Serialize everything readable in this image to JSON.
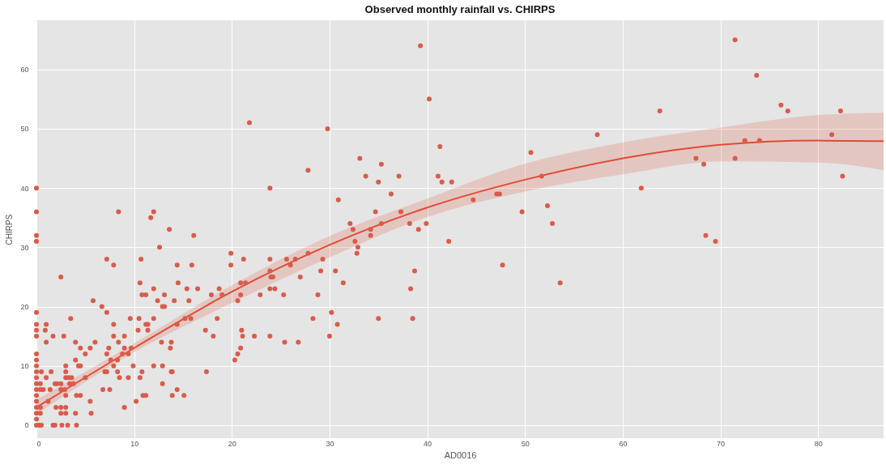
{
  "chart_data": {
    "type": "scatter",
    "title": "Observed monthly rainfall vs. CHIRPS",
    "xlabel": "AD0016",
    "ylabel": "CHIRPS",
    "xlim": [
      0,
      86.7
    ],
    "ylim": [
      -2.2,
      68.3
    ],
    "xticks": [
      0,
      10,
      20,
      30,
      40,
      50,
      60,
      70,
      80
    ],
    "yticks": [
      0,
      10,
      20,
      30,
      40,
      50,
      60
    ],
    "grid": true,
    "series": [
      {
        "type": "scatter",
        "marker": "circle",
        "color": "#d95b4b",
        "x": [
          71.5,
          73.7,
          76.2,
          76.9,
          82.3,
          63.8,
          57.4,
          50.6,
          51.7,
          81.4,
          72.5,
          74.0,
          67.5,
          68.3,
          71.5,
          82.5,
          61.9,
          49.7,
          52.3,
          52.8,
          68.5,
          69.5,
          53.6,
          39.3,
          40.2,
          29.8,
          41.3,
          33.1,
          35.3,
          27.8,
          33.7,
          37.1,
          41.1,
          35.0,
          41.5,
          42.5,
          36.3,
          30.9,
          47.1,
          47.4,
          44.7,
          34.7,
          37.3,
          32.1,
          35.3,
          38.2,
          39.9,
          32.4,
          34.2,
          39.1,
          34.2,
          32.6,
          32.9,
          42.2,
          32.8,
          27.8,
          26.5,
          26.0,
          29.3,
          27.0,
          29.1,
          30.6,
          38.7,
          47.7,
          31.4,
          28.8,
          38.3,
          30.2,
          28.3,
          35.0,
          38.5,
          30.8,
          30.0,
          21.8,
          23.9,
          12.0,
          11.7,
          13.6,
          16.1,
          12.6,
          19.9,
          19.9,
          14.4,
          15.9,
          21.2,
          23.9,
          25.6,
          23.9,
          24.0,
          24.2,
          14.5,
          20.9,
          21.4,
          11.2,
          12.0,
          15.4,
          16.5,
          18.7,
          13.1,
          17.9,
          19.0,
          20.9,
          22.9,
          23.9,
          24.4,
          25.3,
          12.4,
          14.1,
          15.6,
          20.6,
          12.9,
          13.1,
          12.0,
          15.2,
          15.8,
          14.4,
          18.5,
          11.2,
          11.4,
          11.4,
          17.3,
          21.0,
          21.1,
          18.1,
          22.3,
          23.9,
          12.8,
          13.8,
          13.7,
          25.4,
          26.8,
          20.9,
          20.6,
          20.3,
          12.0,
          12.9,
          13.8,
          13.9,
          17.4,
          12.9,
          14.4,
          13.9,
          15.1,
          11.2,
          0,
          0,
          0,
          0,
          8.4,
          7.2,
          7.9,
          2.5,
          10.6,
          10.7,
          10.8,
          5.8,
          6.7,
          7.2,
          0,
          3.5,
          9.6,
          10.5,
          0,
          1.0,
          7.9,
          0,
          0.9,
          10.4,
          0,
          1.7,
          2.8,
          7.9,
          9.0,
          1.0,
          4.0,
          6.0,
          8.4,
          4.5,
          5.5,
          7.4,
          9.0,
          9.7,
          0,
          5.0,
          7.2,
          8.8,
          0,
          4.0,
          7.6,
          8.3,
          9.4,
          0,
          3.0,
          4.3,
          4.5,
          7.9,
          9.9,
          0,
          0.5,
          1.5,
          3.0,
          7.0,
          7.2,
          8.3,
          0,
          1.0,
          3.0,
          3.3,
          3.6,
          5.0,
          8.5,
          9.4,
          10.6,
          0,
          0.4,
          1.9,
          2.1,
          2.5,
          3.4,
          3.8,
          10.8,
          0,
          0.4,
          0.7,
          1.4,
          2.5,
          2.9,
          6.8,
          7.5,
          0,
          3.0,
          4.1,
          4.5,
          10.9,
          0,
          1.2,
          5.5,
          10.2,
          0,
          0.4,
          2.0,
          2.5,
          3.0,
          9.0,
          0,
          0.4,
          2.5,
          3.0,
          4.0,
          5.6,
          0,
          0,
          0.3,
          0.5,
          1.7,
          1.9,
          2.6,
          3.2,
          4.1
        ],
        "values": [
          65,
          59,
          54,
          53,
          53,
          53,
          49,
          46,
          42,
          49,
          48,
          48,
          45,
          44,
          45,
          42,
          40,
          36,
          37,
          34,
          32,
          31,
          24,
          64,
          55,
          50,
          47,
          45,
          44,
          43,
          42,
          42,
          42,
          41,
          41,
          41,
          39,
          38,
          39,
          39,
          38,
          36,
          36,
          34,
          34,
          34,
          34,
          33,
          33,
          33,
          32,
          31,
          30,
          31,
          29,
          29,
          28,
          27,
          28,
          25,
          26,
          26,
          26,
          27,
          24,
          22,
          23,
          19,
          18,
          18,
          18,
          17,
          15,
          51,
          40,
          36,
          35,
          33,
          32,
          30,
          29,
          27,
          27,
          27,
          28,
          28,
          28,
          26,
          25,
          25,
          24,
          24,
          24,
          22,
          23,
          23,
          23,
          23,
          22,
          22,
          22,
          22,
          22,
          23,
          23,
          22,
          21,
          21,
          21,
          21,
          20,
          20,
          18,
          18,
          18,
          17,
          18,
          17,
          17,
          16,
          16,
          16,
          15,
          15,
          15,
          15,
          14,
          14,
          13,
          14,
          14,
          13,
          12,
          11,
          10,
          10,
          9,
          9,
          9,
          7,
          6,
          5,
          5,
          5,
          40,
          36,
          32,
          31,
          36,
          28,
          27,
          25,
          24,
          28,
          22,
          21,
          20,
          19,
          19,
          18,
          18,
          18,
          17,
          17,
          17,
          16,
          16,
          16,
          15,
          15,
          15,
          15,
          15,
          14,
          14,
          14,
          14,
          13,
          13,
          13,
          13,
          13,
          12,
          12,
          12,
          12,
          11,
          11,
          11,
          11,
          12,
          10,
          10,
          10,
          10,
          10,
          10,
          9,
          9,
          9,
          9,
          9,
          9,
          9,
          8,
          8,
          8,
          8,
          8,
          8,
          8,
          8,
          8,
          7,
          7,
          7,
          7,
          7,
          7,
          7,
          9,
          6,
          6,
          6,
          6,
          6,
          6,
          6,
          6,
          5,
          5,
          5,
          5,
          5,
          4,
          4,
          4,
          4,
          3,
          3,
          3,
          3,
          3,
          3,
          2,
          2,
          2,
          2,
          2,
          2,
          1,
          0,
          0,
          0,
          0,
          0,
          0,
          0,
          0
        ]
      },
      {
        "type": "line",
        "marker": "none",
        "color": "#e24a33",
        "x": [
          0,
          10,
          20,
          30,
          40,
          50,
          60,
          70,
          80,
          86.7
        ],
        "values": [
          3,
          13,
          22.5,
          30.4,
          36.7,
          41.4,
          45.0,
          47.3,
          48.0,
          47.9
        ],
        "lower": [
          1.8,
          12.3,
          20.6,
          28.3,
          35.1,
          39.4,
          42.3,
          44.5,
          44.3,
          43.0
        ],
        "upper": [
          4.3,
          13.8,
          23.6,
          31.9,
          38.2,
          44.1,
          47.7,
          50.2,
          52.3,
          52.7
        ]
      }
    ]
  }
}
